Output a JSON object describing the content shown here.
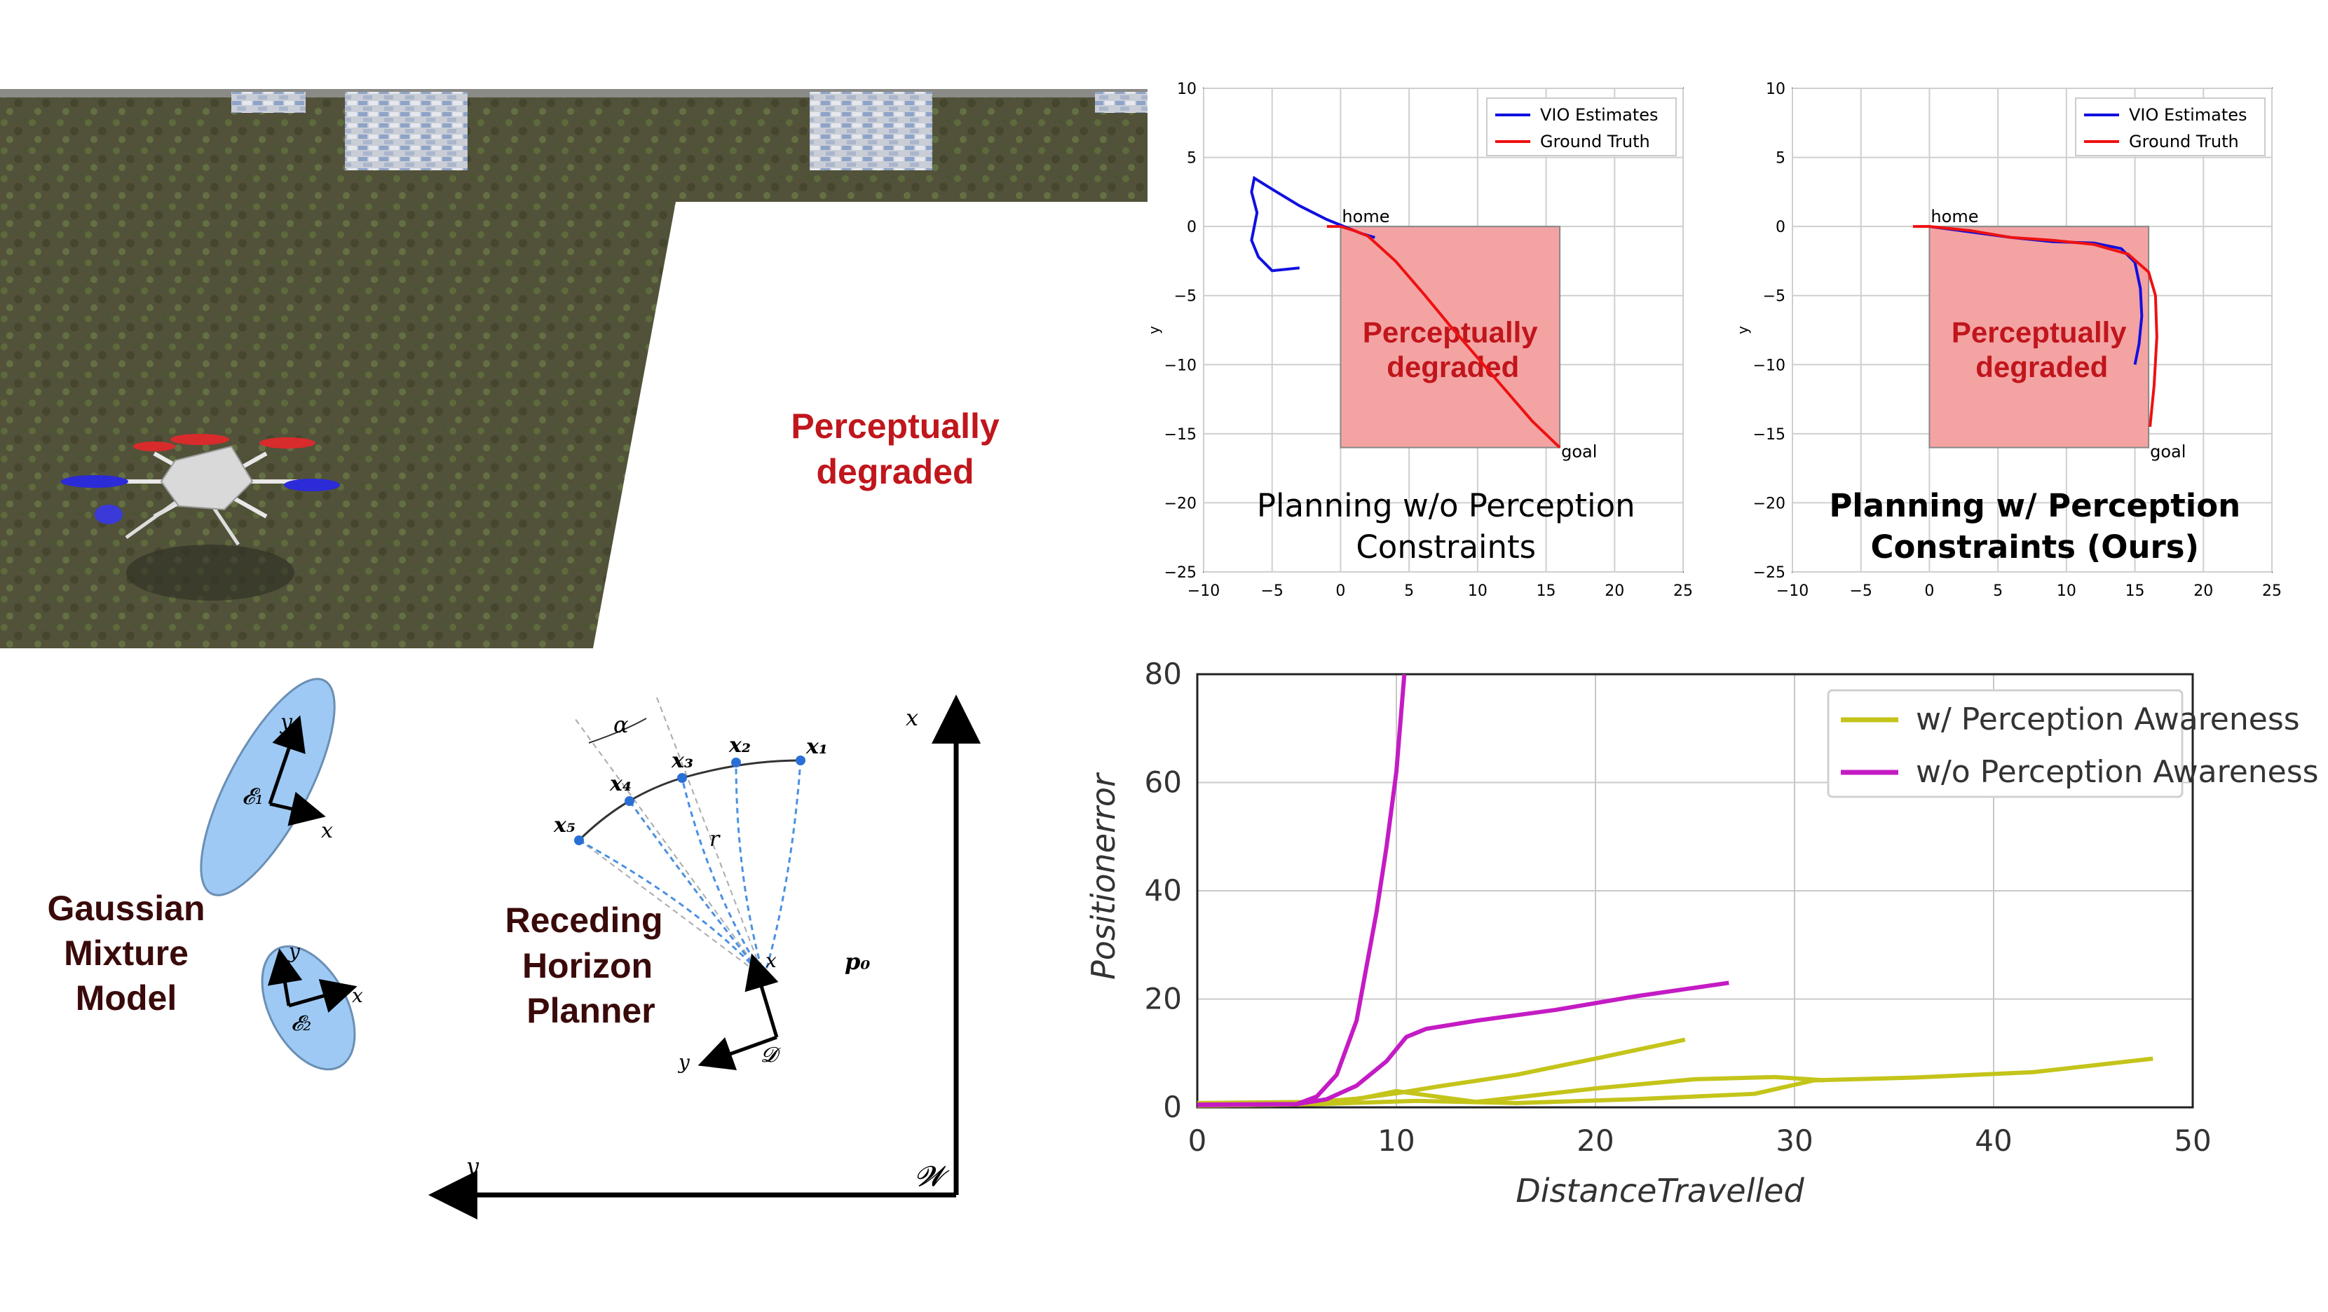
{
  "scene": {
    "label_line1": "Perceptually",
    "label_line2": "degraded"
  },
  "diagram": {
    "gmm_label": [
      "Gaussian",
      "Mixture",
      "Model"
    ],
    "rhp_label": [
      "Receding",
      "Horizon",
      "Planner"
    ],
    "ellipse1": "𝓔₁",
    "ellipse2": "𝓔₂",
    "axis_x": "x",
    "axis_y": "y",
    "frame_D": "𝓓",
    "frame_W": "𝓦",
    "alpha": "α",
    "r": "r",
    "p0": "p₀",
    "waypoints": [
      "x₁",
      "x₂",
      "x₃",
      "x₄",
      "x₅"
    ]
  },
  "colors": {
    "vio": "#1010e0",
    "truth": "#ee1111",
    "region": "#f4a3a3",
    "with_aware": "#c4c41a",
    "without_aware": "#c41bc4",
    "ellipse": "#9ec9f5"
  },
  "chart_data": [
    {
      "type": "line",
      "title": "",
      "caption": [
        "Planning w/o Perception",
        "Constraints"
      ],
      "xlabel": "",
      "ylabel": "y",
      "xlim": [
        -10,
        25
      ],
      "ylim": [
        -25,
        10
      ],
      "xticks": [
        -10,
        -5,
        0,
        5,
        10,
        15,
        20,
        25
      ],
      "yticks": [
        10,
        5,
        0,
        -5,
        -10,
        -15,
        -20,
        -25
      ],
      "grid": true,
      "legend": "top-right",
      "region": {
        "label": [
          "Perceptually",
          "degraded"
        ],
        "x": [
          0,
          16
        ],
        "y": [
          -16,
          0
        ]
      },
      "annotations": [
        {
          "text": "home",
          "x": 0,
          "y": 0
        },
        {
          "text": "goal",
          "x": 16,
          "y": -16
        }
      ],
      "series": [
        {
          "name": "VIO Estimates",
          "x": [
            2.5,
            1.5,
            0.5,
            -1,
            -3,
            -5,
            -6.3,
            -6.5,
            -6.1,
            -6.5,
            -6.0,
            -5.0,
            -3.0
          ],
          "y": [
            -0.8,
            -0.5,
            -0.1,
            0.5,
            1.5,
            2.7,
            3.5,
            2.5,
            1.0,
            -1.0,
            -2.2,
            -3.2,
            -3.0
          ]
        },
        {
          "name": "Ground Truth",
          "x": [
            -1,
            0,
            1,
            2,
            4,
            6,
            8,
            10,
            12,
            14,
            16
          ],
          "y": [
            0,
            0,
            -0.3,
            -0.7,
            -2.5,
            -4.8,
            -7.2,
            -9.5,
            -11.8,
            -14.1,
            -16
          ]
        }
      ]
    },
    {
      "type": "line",
      "title": "",
      "caption": [
        "Planning w/ Perception",
        "Constraints (Ours)"
      ],
      "xlabel": "",
      "ylabel": "y",
      "xlim": [
        -10,
        25
      ],
      "ylim": [
        -25,
        10
      ],
      "xticks": [
        -10,
        -5,
        0,
        5,
        10,
        15,
        20,
        25
      ],
      "yticks": [
        10,
        5,
        0,
        -5,
        -10,
        -15,
        -20,
        -25
      ],
      "grid": true,
      "legend": "top-right",
      "region": {
        "label": [
          "Perceptually",
          "degraded"
        ],
        "x": [
          0,
          16
        ],
        "y": [
          -16,
          0
        ]
      },
      "annotations": [
        {
          "text": "home",
          "x": 0,
          "y": 0
        },
        {
          "text": "goal",
          "x": 16,
          "y": -16
        }
      ],
      "series": [
        {
          "name": "VIO Estimates",
          "x": [
            0,
            3,
            6,
            9,
            12,
            14,
            15,
            15.4,
            15.5,
            15.3,
            15.0
          ],
          "y": [
            0,
            -0.4,
            -0.8,
            -1.1,
            -1.2,
            -1.6,
            -2.6,
            -4.5,
            -6.5,
            -8.5,
            -10.0
          ]
        },
        {
          "name": "Ground Truth",
          "x": [
            -1.2,
            0,
            3,
            6,
            9,
            12,
            14.5,
            16,
            16.5,
            16.6,
            16.4,
            16.1
          ],
          "y": [
            0,
            0,
            -0.3,
            -0.8,
            -1.0,
            -1.3,
            -2.0,
            -3.3,
            -5.0,
            -8.0,
            -11.5,
            -14.5
          ]
        }
      ]
    },
    {
      "type": "line",
      "title": "",
      "xlabel": "DistanceTravelled",
      "ylabel": "Positionerror",
      "xlim": [
        0,
        50
      ],
      "ylim": [
        0,
        80
      ],
      "xticks": [
        0,
        10,
        20,
        30,
        40,
        50
      ],
      "yticks": [
        0,
        20,
        40,
        60,
        80
      ],
      "grid": true,
      "legend": "top-right",
      "series": [
        {
          "name": "w/ Perception Awareness",
          "x": [
            0,
            3,
            6,
            8,
            10,
            12,
            16,
            20,
            24.5
          ],
          "y": [
            0.8,
            0.9,
            1.0,
            1.6,
            2.6,
            3.8,
            6.0,
            9.0,
            12.5
          ]
        },
        {
          "name": "w/ Perception Awareness",
          "x": [
            0,
            4,
            8,
            10,
            14,
            20,
            25,
            29,
            31.5
          ],
          "y": [
            0.3,
            0.5,
            1.5,
            3.0,
            1.0,
            3.5,
            5.2,
            5.6,
            5.0
          ]
        },
        {
          "name": "w/ Perception Awareness",
          "x": [
            0,
            6,
            11,
            16,
            22,
            28,
            31,
            36,
            42,
            48
          ],
          "y": [
            0.3,
            0.6,
            1.2,
            0.8,
            1.5,
            2.5,
            5.0,
            5.5,
            6.5,
            9.0
          ]
        },
        {
          "name": "w/o Perception Awareness",
          "x": [
            0,
            5,
            6,
            7,
            8,
            9,
            9.5,
            10,
            10.4
          ],
          "y": [
            0.5,
            0.6,
            2.0,
            6.0,
            16.0,
            36.0,
            48.0,
            62.0,
            80.0
          ]
        },
        {
          "name": "w/o Perception Awareness",
          "x": [
            0,
            5,
            6.5,
            8,
            9.5,
            10.5,
            11.5,
            14,
            18,
            22,
            26.7
          ],
          "y": [
            0.4,
            0.6,
            1.5,
            4.0,
            8.5,
            13.0,
            14.5,
            16.0,
            18.0,
            20.5,
            23.0
          ]
        }
      ]
    }
  ]
}
